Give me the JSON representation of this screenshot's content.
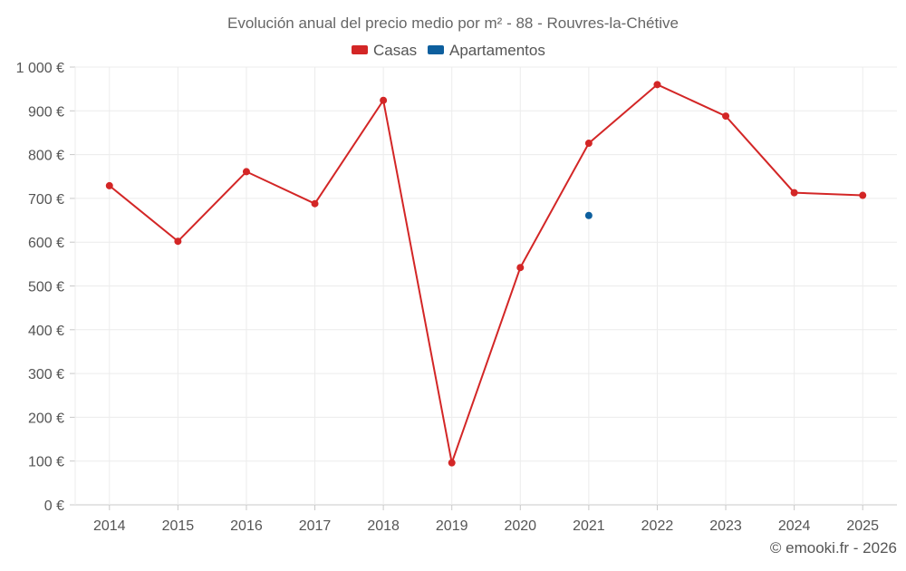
{
  "chart_data": {
    "type": "line",
    "title": "Evolución anual del precio medio por m² - 88 - Rouvres-la-Chétive",
    "categories": [
      "2014",
      "2015",
      "2016",
      "2017",
      "2018",
      "2019",
      "2020",
      "2021",
      "2022",
      "2023",
      "2024",
      "2025"
    ],
    "series": [
      {
        "name": "Casas",
        "color": "#d32626",
        "values": [
          729,
          602,
          761,
          688,
          924,
          96,
          542,
          826,
          960,
          888,
          713,
          707
        ]
      },
      {
        "name": "Apartamentos",
        "color": "#0d5f9e",
        "values": [
          null,
          null,
          null,
          null,
          null,
          null,
          null,
          661,
          null,
          null,
          null,
          null
        ]
      }
    ],
    "ylim": [
      0,
      1000
    ],
    "yticks": [
      0,
      100,
      200,
      300,
      400,
      500,
      600,
      700,
      800,
      900,
      1000
    ],
    "ytick_labels": [
      "0 €",
      "100 €",
      "200 €",
      "300 €",
      "400 €",
      "500 €",
      "600 €",
      "700 €",
      "800 €",
      "900 €",
      "1 000 €"
    ],
    "xlabel": "",
    "ylabel": "",
    "grid": true,
    "legend_position": "top-center"
  },
  "credit": "© emooki.fr - 2026"
}
